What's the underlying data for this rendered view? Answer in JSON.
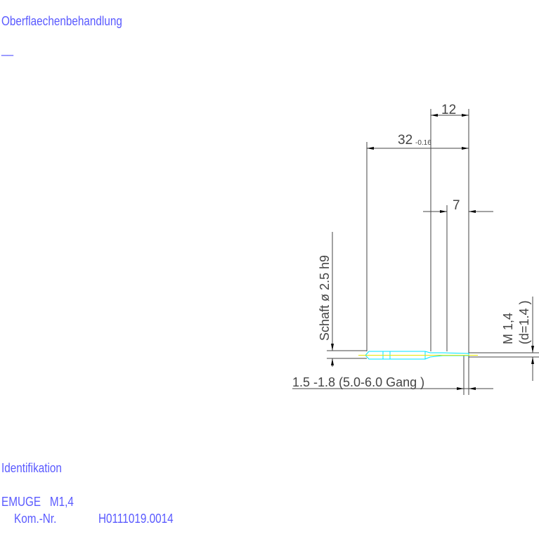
{
  "surface_label": "Oberflaechenbehandlung",
  "surface_value": "__",
  "identification_label": "Identifikation",
  "manufacturer_line": "EMUGE   M1,4",
  "kom_label": "Kom.-Nr.",
  "kom_value": "H0111019.0014",
  "dimensions": {
    "thread_length": "12",
    "total_length": "32",
    "total_length_tolerance": "-0.16",
    "neck_length": "7",
    "shank": "Schaft  ø 2.5  h9",
    "thread_name": "M 1,4",
    "thread_diameter": "(d=1.4 )",
    "chamfer": "1.5 -1.8 (5.0-6.0  Gang   )"
  },
  "colors": {
    "text": "#5a5aff",
    "dimension": "#444444",
    "contour": "#00e5ff",
    "centerline": "#e6e600"
  }
}
